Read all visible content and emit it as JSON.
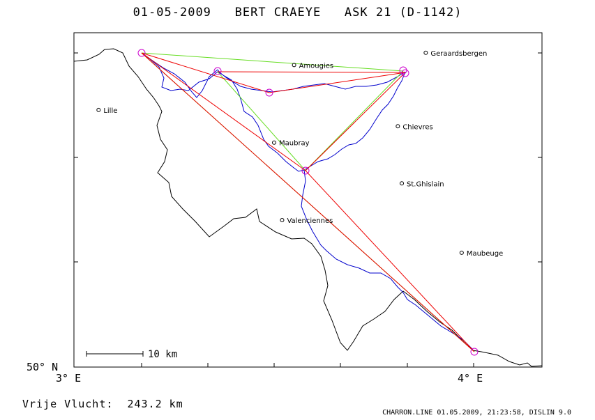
{
  "title": "01-05-2009   BERT CRAEYE   ASK 21 (D-1142)",
  "axes": {
    "x_ticks": [
      {
        "value": 3.0,
        "label": "3° E"
      },
      {
        "value": 4.0,
        "label": "4° E"
      }
    ],
    "y_ticks": [
      {
        "value": 50.0,
        "label": "50° N"
      }
    ]
  },
  "scale_bar": {
    "label": "10 km"
  },
  "places": [
    {
      "name": "Amougies",
      "lon": 3.55,
      "lat": 50.74
    },
    {
      "name": "Geraardsbergen",
      "lon": 3.88,
      "lat": 50.77
    },
    {
      "name": "Lille",
      "lon": 3.06,
      "lat": 50.63
    },
    {
      "name": "Chievres",
      "lon": 3.81,
      "lat": 50.59
    },
    {
      "name": "Maubray",
      "lon": 3.5,
      "lat": 50.55
    },
    {
      "name": "St.Ghislain",
      "lon": 3.82,
      "lat": 50.45
    },
    {
      "name": "Valenciennes",
      "lon": 3.52,
      "lat": 50.36
    },
    {
      "name": "Maubeuge",
      "lon": 3.97,
      "lat": 50.28
    }
  ],
  "colors": {
    "track": "#0000cc",
    "task_red": "#ee0000",
    "task_green": "#66dd22",
    "turnpoint": "#cc00cc",
    "border": "#000000"
  },
  "summary": "Vrije Vlucht:  243.2 km",
  "footer": "CHARRON.LINE 01.05.2009, 21:23:58, DISLIN 9.0"
}
